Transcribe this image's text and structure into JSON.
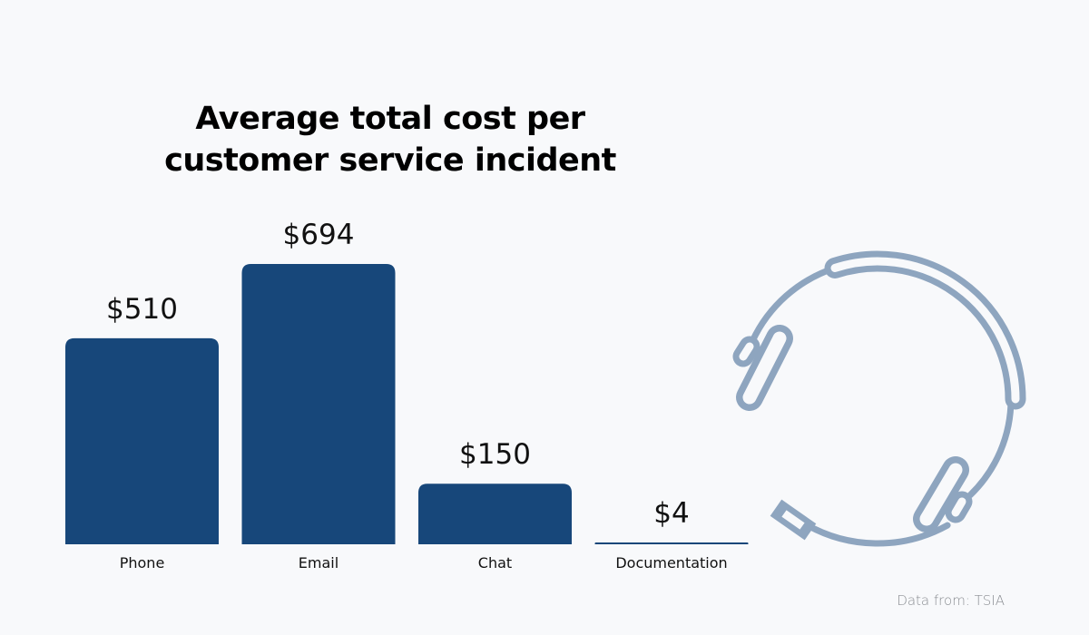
{
  "chart_data": {
    "type": "bar",
    "title": "Average  total cost per customer service incident",
    "categories": [
      "Phone",
      "Email",
      "Chat",
      "Documentation"
    ],
    "values": [
      510,
      694,
      150,
      4
    ],
    "data_labels": [
      "$510",
      "$694",
      "$150",
      "$4"
    ],
    "unit": "USD",
    "xlabel": "",
    "ylabel": "",
    "ylim": [
      0,
      694
    ],
    "grid": false,
    "legend": "none",
    "bar_color": "#17477a"
  },
  "source": "Data from: TSIA",
  "icons": {
    "illustration": "headset-icon",
    "icon_color": "#8ea5bf"
  }
}
